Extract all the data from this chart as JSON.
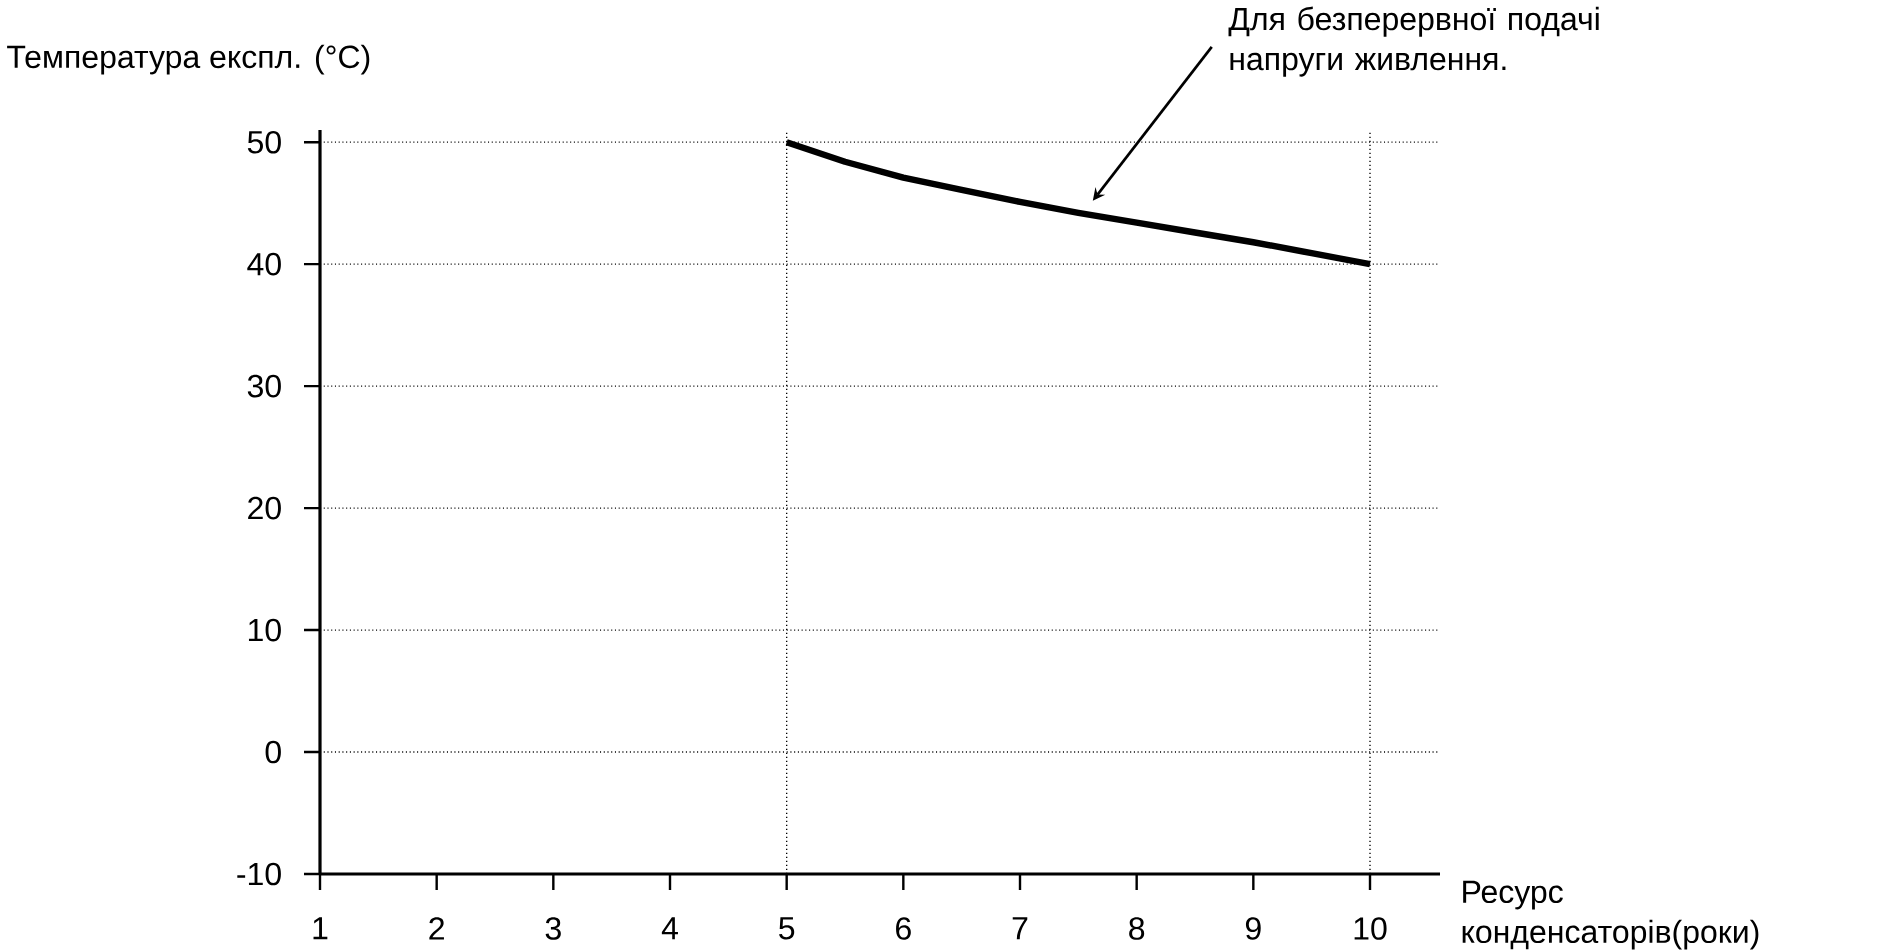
{
  "chart_data": {
    "type": "line",
    "ylabel": "Температура експл. (°C)",
    "xlabel": "Ресурс конденсаторів(роки)",
    "xlim": [
      1,
      10.6
    ],
    "xticks": [
      1,
      2,
      3,
      4,
      5,
      6,
      7,
      8,
      9,
      10
    ],
    "ylim": [
      -10,
      51
    ],
    "yticks": [
      -10,
      0,
      10,
      20,
      30,
      40,
      50
    ],
    "grid": "y",
    "ref_lines": [
      {
        "axis": "x",
        "value": 5,
        "line_style": "dotted"
      },
      {
        "axis": "x",
        "value": 10,
        "line_style": "dotted"
      }
    ],
    "series": [
      {
        "color": "#000000",
        "x": [
          5,
          5.5,
          6,
          6.5,
          7,
          7.5,
          8,
          8.5,
          9,
          9.5,
          10
        ],
        "values": [
          50,
          48.4,
          47.1,
          46.1,
          45.1,
          44.2,
          43.4,
          42.6,
          41.8,
          40.9,
          40
        ]
      }
    ],
    "annotations": [
      "Для безперервної подачі напруги живлення."
    ]
  }
}
